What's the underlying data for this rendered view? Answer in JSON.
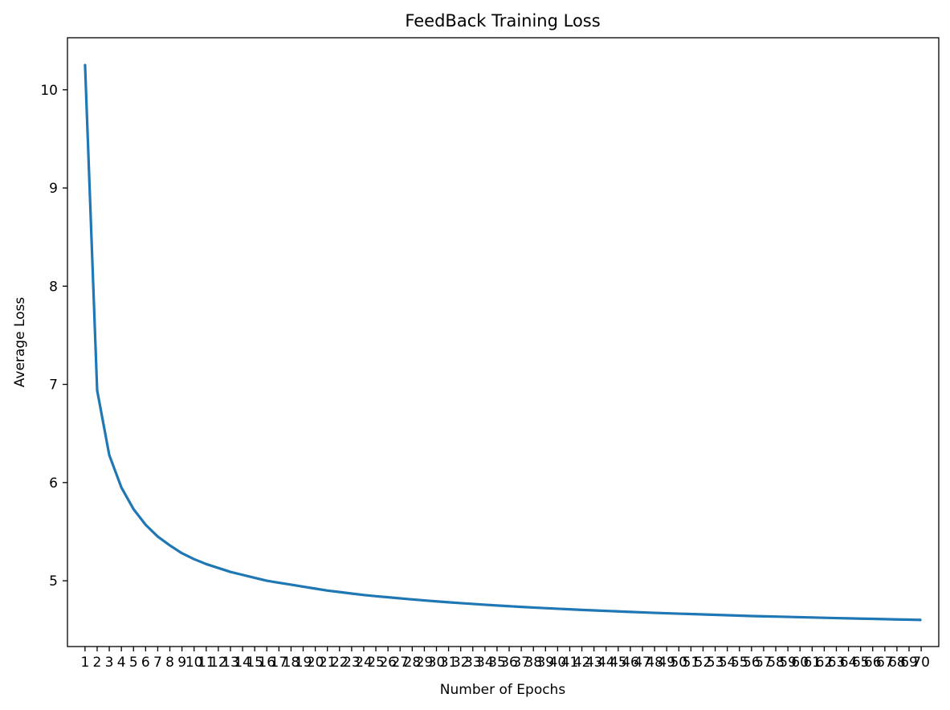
{
  "chart_data": {
    "type": "line",
    "title": "FeedBack Training Loss",
    "xlabel": "Number of Epochs",
    "ylabel": "Average Loss",
    "x": [
      1,
      2,
      3,
      4,
      5,
      6,
      7,
      8,
      9,
      10,
      11,
      12,
      13,
      14,
      15,
      16,
      17,
      18,
      19,
      20,
      21,
      22,
      23,
      24,
      25,
      26,
      27,
      28,
      29,
      30,
      31,
      32,
      33,
      34,
      35,
      36,
      37,
      38,
      39,
      40,
      41,
      42,
      43,
      44,
      45,
      46,
      47,
      48,
      49,
      50,
      51,
      52,
      53,
      54,
      55,
      56,
      57,
      58,
      59,
      60,
      61,
      62,
      63,
      64,
      65,
      66,
      67,
      68,
      69,
      70
    ],
    "x_ticks": [
      1,
      2,
      3,
      4,
      5,
      6,
      7,
      8,
      9,
      10,
      11,
      12,
      13,
      14,
      15,
      16,
      17,
      18,
      19,
      20,
      21,
      22,
      23,
      24,
      25,
      26,
      27,
      28,
      29,
      30,
      31,
      32,
      33,
      34,
      35,
      36,
      37,
      38,
      39,
      40,
      41,
      42,
      43,
      44,
      45,
      46,
      47,
      48,
      49,
      50,
      51,
      52,
      53,
      54,
      55,
      56,
      57,
      58,
      59,
      60,
      61,
      62,
      63,
      64,
      65,
      66,
      67,
      68,
      69,
      70
    ],
    "y_ticks": [
      5,
      6,
      7,
      8,
      9,
      10
    ],
    "xlim": [
      -0.45,
      71.45
    ],
    "ylim": [
      4.33,
      10.53
    ],
    "grid": false,
    "series": [
      {
        "color": "#1f77b4",
        "values": [
          10.26,
          6.94,
          6.28,
          5.95,
          5.73,
          5.57,
          5.45,
          5.36,
          5.28,
          5.22,
          5.17,
          5.13,
          5.09,
          5.06,
          5.03,
          5.0,
          4.98,
          4.96,
          4.94,
          4.92,
          4.9,
          4.885,
          4.87,
          4.855,
          4.843,
          4.832,
          4.821,
          4.81,
          4.8,
          4.79,
          4.781,
          4.772,
          4.764,
          4.756,
          4.748,
          4.741,
          4.734,
          4.727,
          4.721,
          4.715,
          4.709,
          4.703,
          4.698,
          4.693,
          4.688,
          4.683,
          4.678,
          4.673,
          4.669,
          4.665,
          4.661,
          4.657,
          4.653,
          4.649,
          4.645,
          4.641,
          4.638,
          4.635,
          4.632,
          4.629,
          4.626,
          4.623,
          4.62,
          4.617,
          4.614,
          4.612,
          4.609,
          4.606,
          4.604,
          4.601
        ]
      }
    ]
  }
}
